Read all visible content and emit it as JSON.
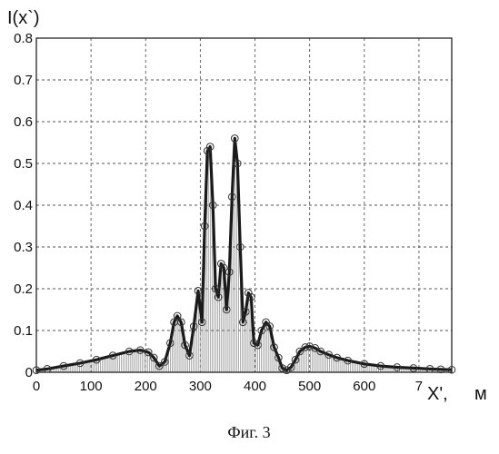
{
  "caption": "Фиг. 3",
  "chart_data": {
    "type": "line",
    "ylabel": "I(x`)",
    "xlabel": "X',",
    "xunit": "м",
    "xlim": [
      0,
      760
    ],
    "ylim": [
      0,
      0.8
    ],
    "grid": true,
    "x_ticks": [
      "0",
      "100",
      "200",
      "300",
      "400",
      "500",
      "600",
      "7"
    ],
    "y_ticks": [
      "0",
      "0.1",
      "0.2",
      "0.3",
      "0.4",
      "0.5",
      "0.6",
      "0.7",
      "0.8"
    ],
    "series": [
      {
        "x": [
          0,
          20,
          50,
          80,
          110,
          140,
          170,
          190,
          205,
          215,
          225,
          235,
          245,
          252,
          258,
          265,
          272,
          280,
          288,
          296,
          303,
          308,
          313,
          318,
          323,
          328,
          333,
          338,
          343,
          348,
          353,
          358,
          363,
          368,
          373,
          378,
          383,
          388,
          393,
          398,
          405,
          412,
          420,
          427,
          435,
          443,
          450,
          458,
          466,
          474,
          482,
          492,
          500,
          510,
          520,
          535,
          550,
          570,
          600,
          630,
          660,
          690,
          720,
          740,
          760
        ],
        "y": [
          0.005,
          0.008,
          0.015,
          0.022,
          0.03,
          0.04,
          0.05,
          0.053,
          0.048,
          0.035,
          0.015,
          0.025,
          0.07,
          0.12,
          0.135,
          0.12,
          0.065,
          0.04,
          0.11,
          0.195,
          0.12,
          0.35,
          0.53,
          0.54,
          0.4,
          0.2,
          0.18,
          0.26,
          0.25,
          0.15,
          0.24,
          0.42,
          0.56,
          0.5,
          0.3,
          0.12,
          0.145,
          0.19,
          0.18,
          0.07,
          0.065,
          0.1,
          0.12,
          0.11,
          0.06,
          0.035,
          0.01,
          0.005,
          0.012,
          0.03,
          0.05,
          0.06,
          0.062,
          0.058,
          0.05,
          0.042,
          0.035,
          0.028,
          0.02,
          0.015,
          0.012,
          0.01,
          0.008,
          0.007,
          0.006
        ]
      }
    ]
  }
}
